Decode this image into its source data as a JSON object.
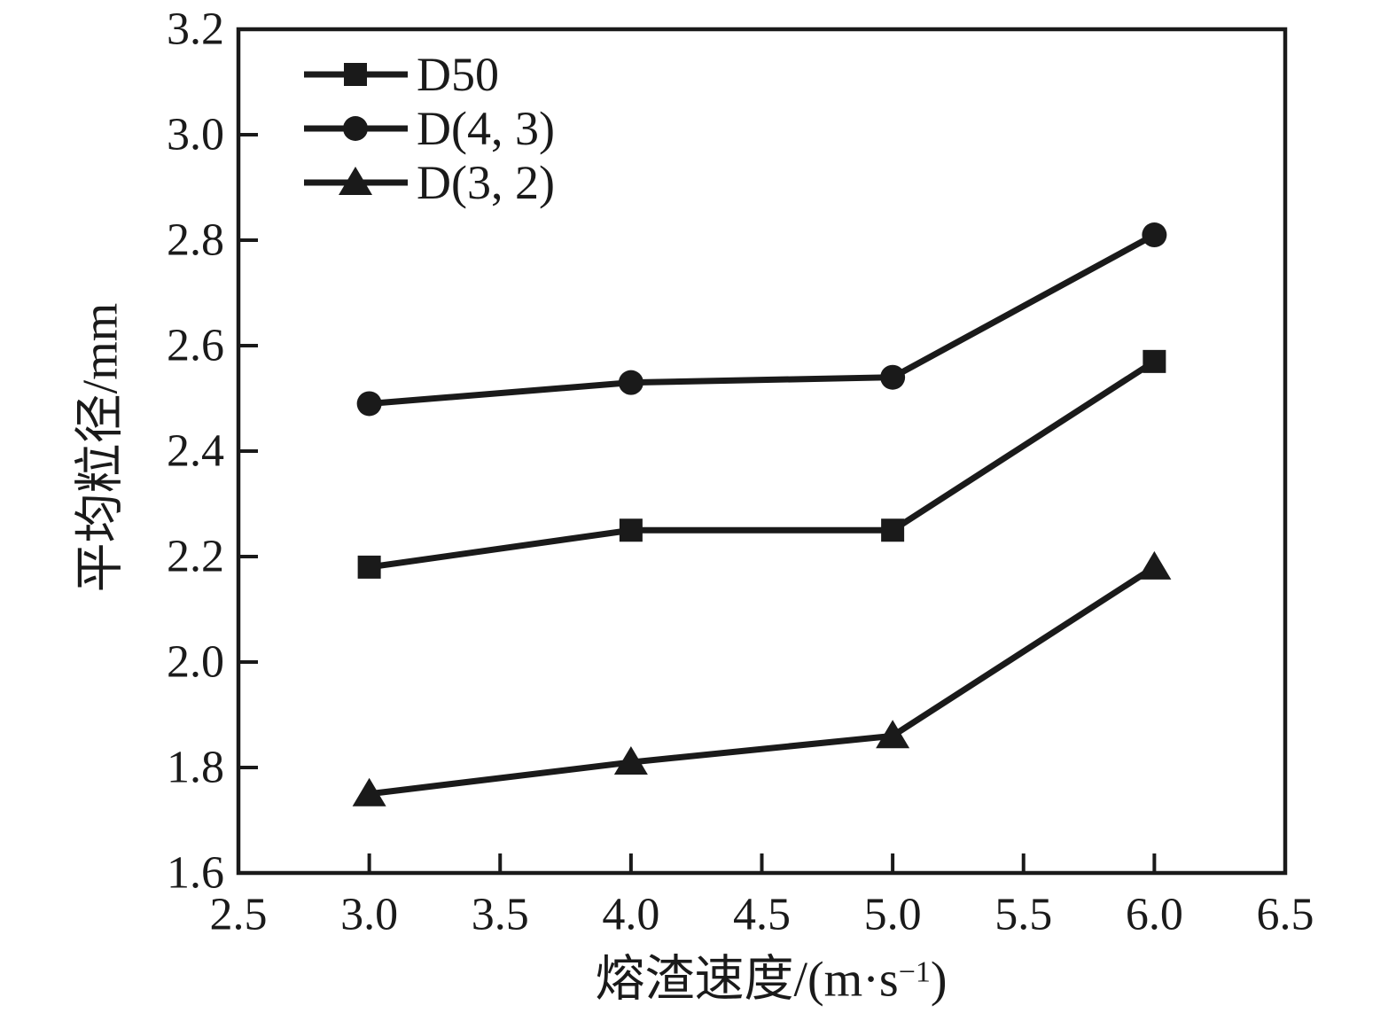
{
  "chart_data": {
    "type": "line",
    "title": "",
    "x": [
      3.0,
      4.0,
      5.0,
      6.0
    ],
    "series": [
      {
        "name": "D50",
        "marker": "square",
        "values": [
          2.18,
          2.25,
          2.25,
          2.57
        ]
      },
      {
        "name": "D(4, 3)",
        "marker": "circle",
        "values": [
          2.49,
          2.53,
          2.54,
          2.81
        ]
      },
      {
        "name": "D(3, 2)",
        "marker": "triangle",
        "values": [
          1.75,
          1.81,
          1.86,
          2.18
        ]
      }
    ],
    "xlabel": "熔渣速度/(m·s⁻¹)",
    "ylabel": "平均粒径/mm",
    "xlim": [
      2.5,
      6.5
    ],
    "ylim": [
      1.6,
      3.2
    ],
    "x_ticks": [
      2.5,
      3.0,
      3.5,
      4.0,
      4.5,
      5.0,
      5.5,
      6.0,
      6.5
    ],
    "y_ticks": [
      1.6,
      1.8,
      2.0,
      2.2,
      2.4,
      2.6,
      2.8,
      3.0,
      3.2
    ],
    "grid": false,
    "legend_position": "top-left-inside",
    "line_color": "#1a1a1a",
    "background_color": "#ffffff"
  },
  "axis": {
    "xlabel_prefix": "熔渣速度/(m·s",
    "xlabel_sup": "−1",
    "xlabel_suffix": ")",
    "ylabel": "平均粒径/mm"
  }
}
